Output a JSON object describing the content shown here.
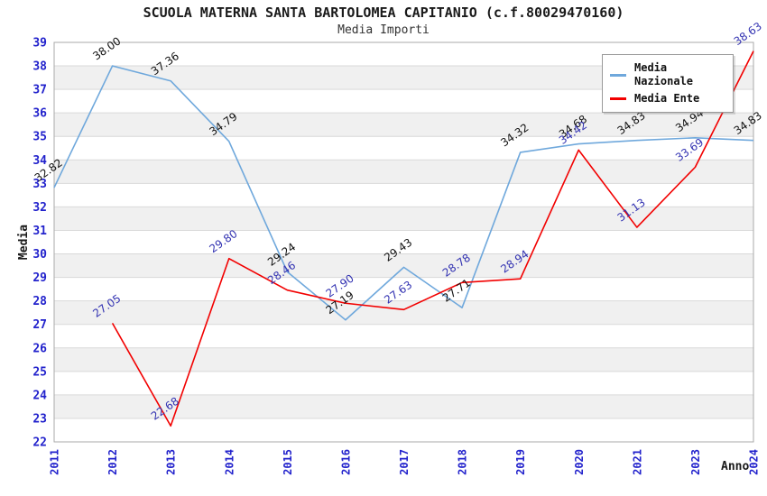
{
  "chart": {
    "title": "SCUOLA MATERNA SANTA BARTOLOMEA CAPITANIO (c.f.80029470160)",
    "subtitle": "Media Importi"
  },
  "legend": {
    "items": [
      {
        "label": "Media Nazionale",
        "color": "#6fa8dc"
      },
      {
        "label": "Media Ente",
        "color": "#f20000"
      }
    ]
  },
  "chart_data": {
    "type": "line",
    "title": "SCUOLA MATERNA SANTA BARTOLOMEA CAPITANIO (c.f.80029470160)",
    "subtitle": "Media Importi",
    "xlabel": "Anno",
    "ylabel": "Media",
    "categories": [
      "2011",
      "2012",
      "2013",
      "2014",
      "2015",
      "2016",
      "2017",
      "2018",
      "2019",
      "2020",
      "2021",
      "2023",
      "2024"
    ],
    "series": [
      {
        "name": "Media Nazionale",
        "color": "#6fa8dc",
        "label_color": "#111111",
        "values": [
          32.82,
          38.0,
          37.36,
          34.79,
          29.24,
          27.19,
          29.43,
          27.71,
          34.32,
          34.68,
          34.83,
          34.94,
          34.83
        ]
      },
      {
        "name": "Media Ente",
        "color": "#f20000",
        "label_color": "#3333b2",
        "values": [
          null,
          27.05,
          22.68,
          29.8,
          28.46,
          27.9,
          27.63,
          28.78,
          28.94,
          34.42,
          31.13,
          33.69,
          38.63
        ]
      }
    ],
    "ylim": [
      22,
      39
    ],
    "ytick_step": 1,
    "grid": "horizontal",
    "band_color": "#f0f0f0",
    "grid_color": "#d9d9d9",
    "border_color": "#aaaaaa",
    "axis_label_color": "#2222cc",
    "axis_title_color": "#1a1a1a",
    "legend_position": "top-right"
  }
}
